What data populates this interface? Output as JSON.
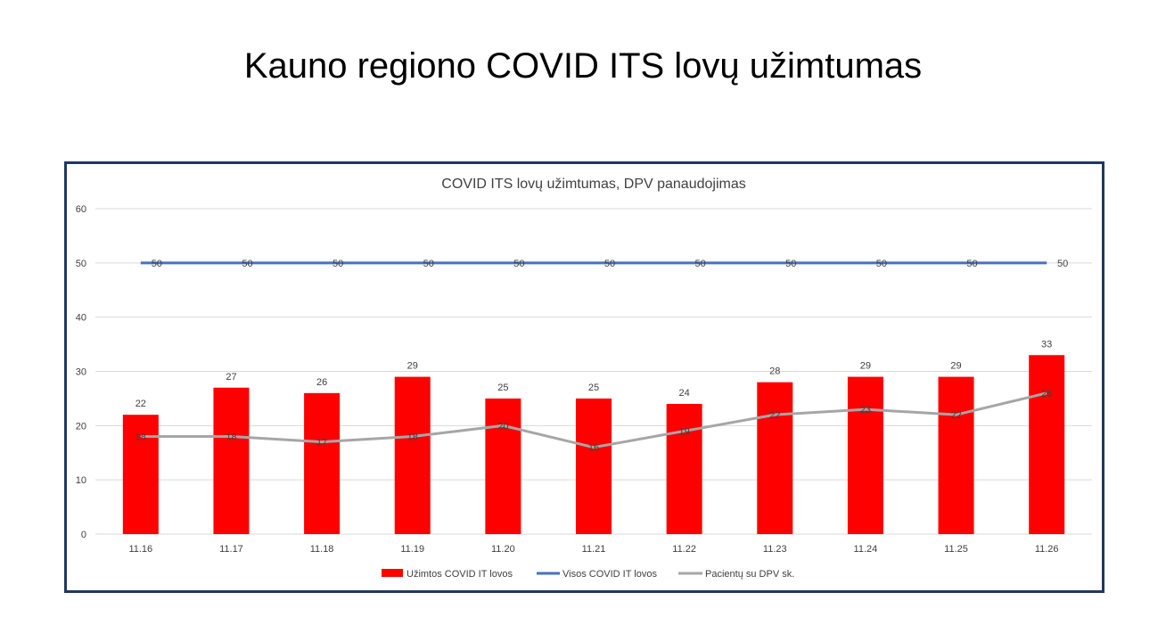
{
  "slide": {
    "title": "Kauno regiono COVID ITS lovų užimtumas"
  },
  "colors": {
    "bar": "#ff0000",
    "total_line": "#4472c4",
    "dpv_line": "#a6a6a6",
    "frame": "#1f3864",
    "grid": "#d9d9d9"
  },
  "chart_data": {
    "type": "bar",
    "title": "COVID ITS lovų užimtumas, DPV panaudojimas",
    "categories": [
      "11.16",
      "11.17",
      "11.18",
      "11.19",
      "11.20",
      "11.21",
      "11.22",
      "11.23",
      "11.24",
      "11.25",
      "11.26"
    ],
    "ylim": [
      0,
      60
    ],
    "yticks": [
      0,
      10,
      20,
      30,
      40,
      50,
      60
    ],
    "grid": true,
    "legend": "bottom",
    "series": [
      {
        "name": "Užimtos COVID IT lovos",
        "type": "bar",
        "values": [
          22,
          27,
          26,
          29,
          25,
          25,
          24,
          28,
          29,
          29,
          33
        ]
      },
      {
        "name": "Visos COVID IT lovos",
        "type": "line",
        "values": [
          50,
          50,
          50,
          50,
          50,
          50,
          50,
          50,
          50,
          50,
          50
        ]
      },
      {
        "name": "Pacientų su DPV sk.",
        "type": "line",
        "values": [
          18,
          18,
          17,
          18,
          20,
          16,
          19,
          22,
          23,
          22,
          26
        ]
      }
    ]
  }
}
